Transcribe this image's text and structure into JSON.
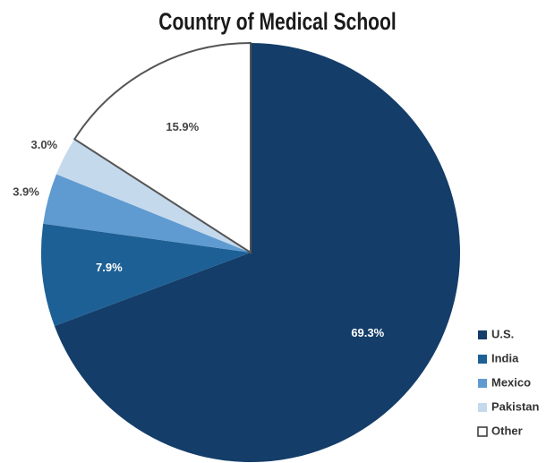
{
  "chart_data": {
    "type": "pie",
    "title": "Country of Medical School",
    "categories": [
      "U.S.",
      "India",
      "Mexico",
      "Pakistan",
      "Other"
    ],
    "values": [
      69.3,
      7.9,
      3.9,
      3.0,
      15.9
    ],
    "value_labels": [
      "69.3%",
      "7.9%",
      "3.9%",
      "3.0%",
      "15.9%"
    ],
    "colors": [
      "#143d69",
      "#1d6095",
      "#5f9bd0",
      "#c5d9ed",
      "#ffffff"
    ],
    "legend": "right"
  }
}
